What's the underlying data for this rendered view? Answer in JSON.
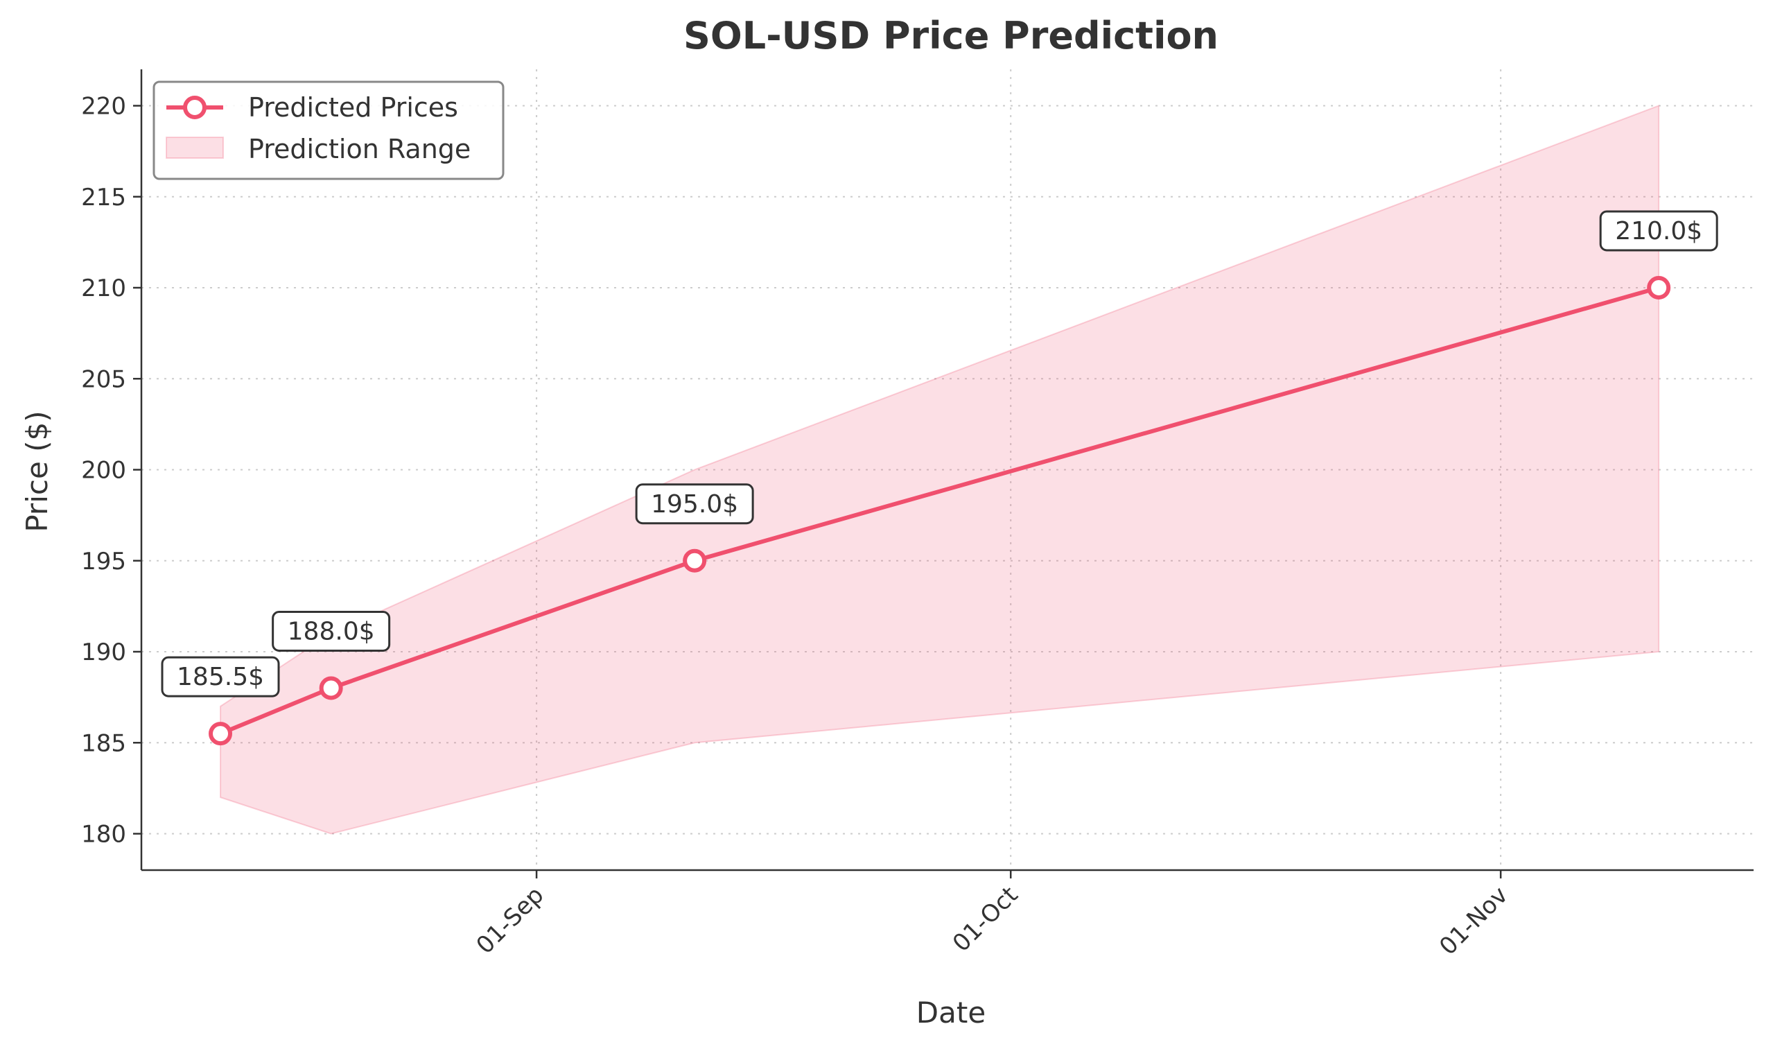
{
  "chart_data": {
    "type": "line",
    "title": "SOL-USD Price Prediction",
    "xlabel": "Date",
    "ylabel": "Price ($)",
    "x_ticks": [
      {
        "date": "2024-09-01",
        "label": "01-Sep"
      },
      {
        "date": "2024-10-01",
        "label": "01-Oct"
      },
      {
        "date": "2024-11-01",
        "label": "01-Nov"
      }
    ],
    "y_ticks": [
      180,
      185,
      190,
      195,
      200,
      205,
      210,
      215,
      220
    ],
    "xlim": [
      "2024-08-07",
      "2024-11-17"
    ],
    "ylim": [
      178,
      222
    ],
    "grid": true,
    "legend_position": "top-left",
    "series": [
      {
        "name": "Predicted Prices",
        "color": "#f0506e",
        "points": [
          {
            "x": "2024-08-12",
            "y": 185.5,
            "label": "185.5$"
          },
          {
            "x": "2024-08-19",
            "y": 188.0,
            "label": "188.0$"
          },
          {
            "x": "2024-09-11",
            "y": 195.0,
            "label": "195.0$"
          },
          {
            "x": "2024-11-11",
            "y": 210.0,
            "label": "210.0$"
          }
        ]
      }
    ],
    "range": {
      "name": "Prediction Range",
      "color": "#f0506e",
      "opacity": 0.18,
      "points": [
        {
          "x": "2024-08-12",
          "low": 182,
          "high": 187
        },
        {
          "x": "2024-08-19",
          "low": 180,
          "high": 191
        },
        {
          "x": "2024-09-11",
          "low": 185,
          "high": 200
        },
        {
          "x": "2024-11-11",
          "low": 190,
          "high": 220
        }
      ]
    }
  }
}
